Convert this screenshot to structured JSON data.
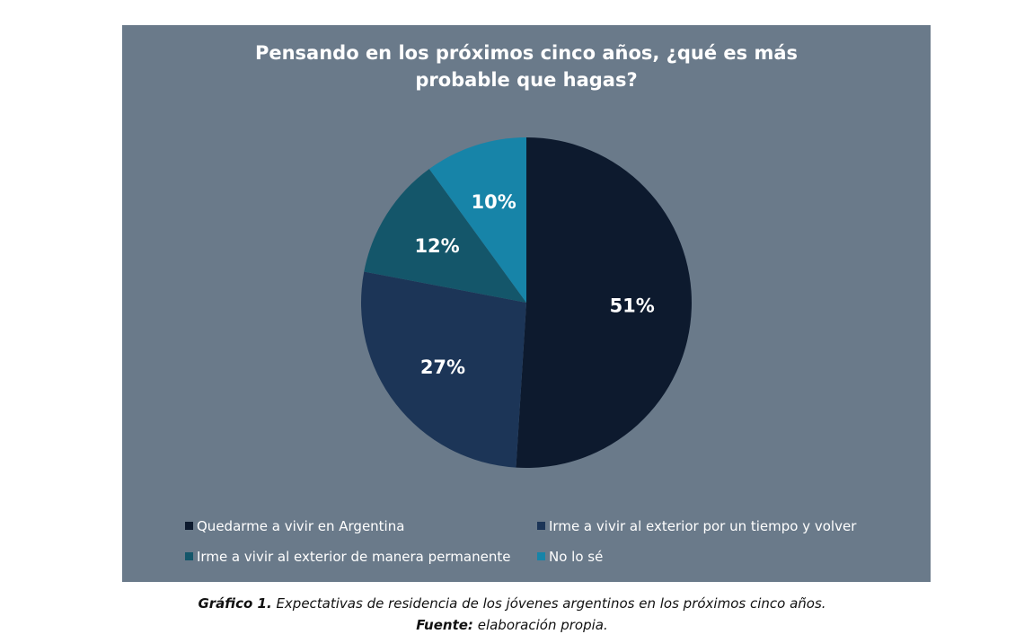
{
  "chart_data": {
    "type": "pie",
    "title_lines": [
      "Pensando en los próximos cinco años, ¿qué es más",
      "probable que hagas?"
    ],
    "slices": [
      {
        "label": "Quedarme a vivir en Argentina",
        "value": 51,
        "display": "51%",
        "color": "#0d1a2e"
      },
      {
        "label": "Irme a vivir al exterior por un tiempo y volver",
        "value": 27,
        "display": "27%",
        "color": "#1c3557"
      },
      {
        "label": "Irme a vivir al exterior de manera permanente",
        "value": 12,
        "display": "12%",
        "color": "#14566a"
      },
      {
        "label": "No lo sé",
        "value": 10,
        "display": "10%",
        "color": "#1784a8"
      }
    ],
    "legend_position": "bottom"
  },
  "caption": {
    "figure_label": "Gráfico 1.",
    "figure_text": "Expectativas de residencia de los jóvenes argentinos en los próximos cinco años.",
    "source_label": "Fuente:",
    "source_text": "elaboración propia."
  }
}
